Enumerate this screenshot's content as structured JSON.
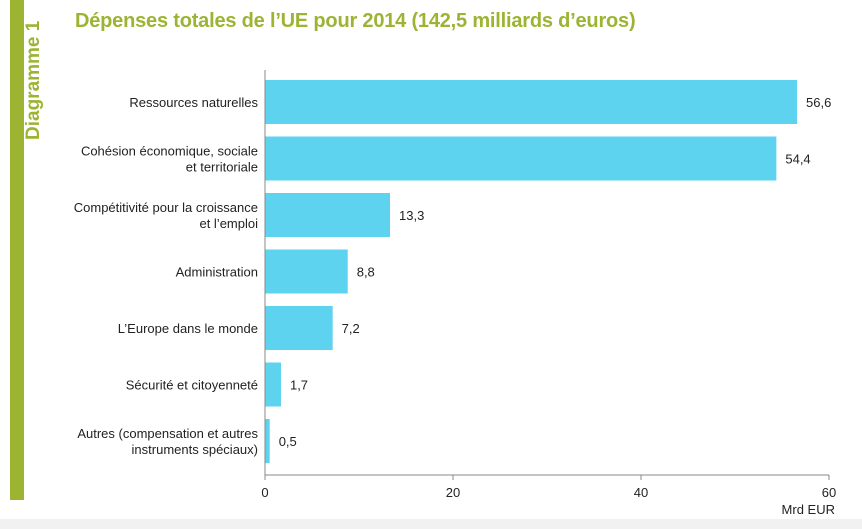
{
  "side_label": "Diagramme 1",
  "colors": {
    "accent": "#9cb432",
    "bar": "#5ed3ef",
    "axis": "#888888",
    "text": "#222222"
  },
  "chart_data": {
    "type": "bar",
    "orientation": "horizontal",
    "title": "Dépenses totales de l’UE pour 2014 (142,5 milliards d’euros)",
    "categories": [
      [
        "Ressources naturelles"
      ],
      [
        "Cohésion économique, sociale",
        "et territoriale"
      ],
      [
        "Compétitivité pour la croissance",
        "et l’emploi"
      ],
      [
        "Administration"
      ],
      [
        "L’Europe dans le monde"
      ],
      [
        "Sécurité et citoyenneté"
      ],
      [
        "Autres (compensation et autres",
        "instruments spéciaux)"
      ]
    ],
    "values": [
      56.6,
      54.4,
      13.3,
      8.8,
      7.2,
      1.7,
      0.5
    ],
    "value_labels": [
      "56,6",
      "54,4",
      "13,3",
      "8,8",
      "7,2",
      "1,7",
      "0,5"
    ],
    "xlim": [
      0,
      60
    ],
    "xticks": [
      0,
      20,
      40,
      60
    ],
    "xlabel": "Mrd EUR",
    "ylabel": "",
    "grid": false,
    "legend": "none"
  }
}
